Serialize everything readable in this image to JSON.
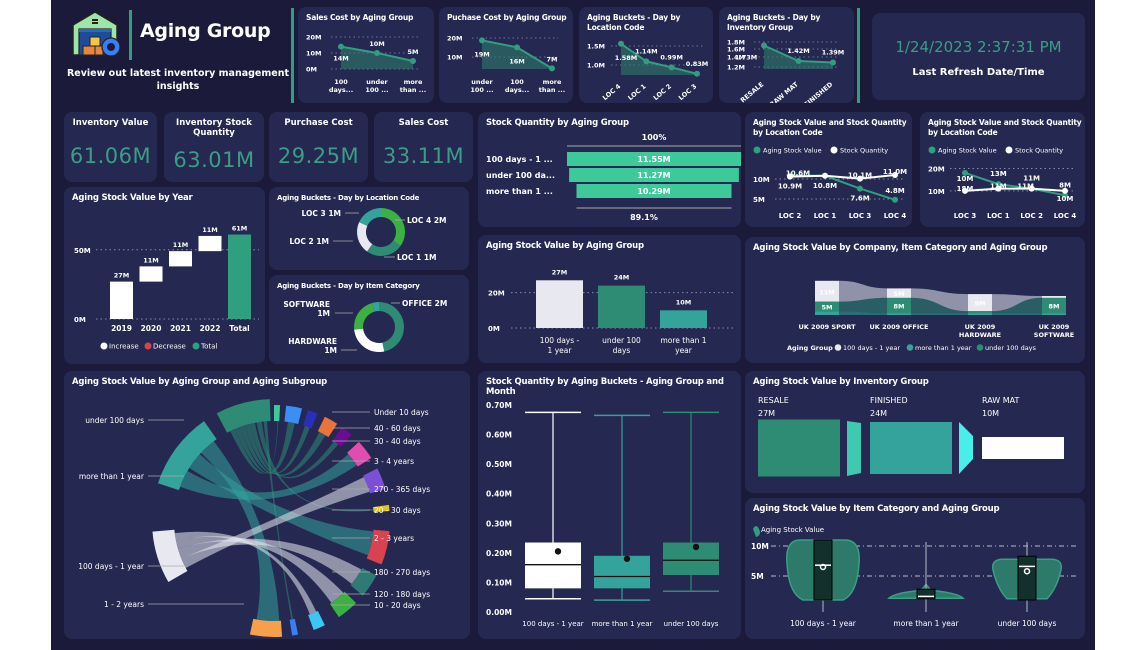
{
  "header": {
    "title": "Aging Group",
    "subtitle": "Review out latest inventory management insights",
    "logo_icon": "warehouse-gear-icon"
  },
  "refresh": {
    "datetime": "1/24/2023 2:37:31 PM",
    "label": "Last Refresh Date/Time"
  },
  "kpis": [
    {
      "label": "Inventory Value",
      "value": "61.06M"
    },
    {
      "label": "Inventory Stock Quantity",
      "value": "63.01M"
    },
    {
      "label": "Purchase Cost",
      "value": "29.25M"
    },
    {
      "label": "Sales Cost",
      "value": "33.11M"
    }
  ],
  "colors": {
    "background": "#1b1a3a",
    "card": "#252850",
    "accent": "#2f9f7f",
    "teal": "#33a39c",
    "mint": "#3ec99a",
    "white": "#ffffff",
    "decrease": "#d9434f"
  },
  "chart_data": [
    {
      "id": "sales_cost",
      "type": "area",
      "title": "Sales Cost by Aging Group",
      "categories": [
        "100 days...",
        "under 100 ...",
        "more than ..."
      ],
      "values": [
        14,
        10,
        5
      ],
      "data_labels": [
        "14M",
        "10M",
        "5M"
      ],
      "yticks": [
        "20M",
        "10M",
        "0M"
      ],
      "ylim": [
        0,
        20
      ]
    },
    {
      "id": "purchase_cost",
      "type": "area",
      "title": "Puchase Cost by Aging Group",
      "categories": [
        "under 100 ...",
        "100 days...",
        "more than ..."
      ],
      "values": [
        19,
        16,
        7
      ],
      "data_labels": [
        "19M",
        "16M",
        "7M"
      ],
      "yticks": [
        "20M",
        "10M"
      ],
      "ylim": [
        5,
        20
      ]
    },
    {
      "id": "buckets_location",
      "type": "area",
      "title": "Aging Buckets - Day by Location Code",
      "categories": [
        "LOC 4",
        "LOC 1",
        "LOC 2",
        "LOC 3"
      ],
      "values": [
        1.58,
        1.14,
        0.99,
        0.83
      ],
      "data_labels": [
        "1.58M",
        "1.14M",
        "0.99M",
        "0.83M"
      ],
      "yticks": [
        "1.5M",
        "1.0M"
      ],
      "ylim": [
        0.75,
        1.75
      ]
    },
    {
      "id": "buckets_inventory",
      "type": "area",
      "title": "Aging Buckets - Day by Inventory Group",
      "categories": [
        "RESALE",
        "RAW MAT",
        "FINISHED"
      ],
      "values": [
        1.73,
        1.42,
        1.39
      ],
      "data_labels": [
        "1.73M",
        "1.42M",
        "1.39M"
      ],
      "yticks": [
        "1.8M",
        "1.6M",
        "1.4M",
        "1.2M"
      ],
      "ylim": [
        1.2,
        1.8
      ]
    },
    {
      "id": "funnel",
      "type": "bar",
      "title": "Stock Quantity by Aging Group",
      "categories": [
        "100 days - 1 ...",
        "under 100 da...",
        "more than 1 ..."
      ],
      "values": [
        11.55,
        11.27,
        10.29
      ],
      "data_labels": [
        "11.55M",
        "11.27M",
        "10.29M"
      ],
      "top_percent": "100%",
      "bottom_percent": "89.1%"
    },
    {
      "id": "loc_combo_1",
      "type": "line",
      "title": "Aging Stock Value and Stock Quantity by Location Code",
      "legend": [
        "Aging Stock Value",
        "Stock Quantity"
      ],
      "categories": [
        "LOC 2",
        "LOC 1",
        "LOC 3",
        "LOC 4"
      ],
      "series": [
        {
          "name": "Aging Stock Value",
          "values": [
            10.9,
            10.8,
            7.6,
            4.8
          ],
          "labels": [
            "10.9M",
            "10.8M",
            "7.6M",
            "4.8M"
          ]
        },
        {
          "name": "Stock Quantity",
          "values": [
            10.6,
            10.8,
            10.1,
            11.0
          ],
          "labels": [
            "10.6M",
            "",
            "10.1M",
            "11.0M"
          ]
        }
      ],
      "yticks": [
        "10M",
        "5M"
      ],
      "ylim": [
        3,
        13
      ]
    },
    {
      "id": "loc_combo_2",
      "type": "line",
      "title": "Aging Stock Value and Stock Quantity by Location Code",
      "legend": [
        "Aging Stock Value",
        "Stock Quantity"
      ],
      "categories": [
        "LOC 3",
        "LOC 1",
        "LOC 2",
        "LOC 4"
      ],
      "series": [
        {
          "name": "Aging Stock Value",
          "values": [
            18,
            13,
            11,
            8
          ],
          "labels": [
            "18M",
            "13M",
            "11M",
            "8M"
          ]
        },
        {
          "name": "Stock Quantity",
          "values": [
            10,
            11,
            11,
            10
          ],
          "labels": [
            "10M",
            "11M",
            "11M",
            "10M"
          ]
        }
      ],
      "yticks": [
        "20M",
        "10M"
      ],
      "ylim": [
        5,
        22
      ]
    },
    {
      "id": "waterfall",
      "type": "bar",
      "title": "Aging Stock Value by Year",
      "categories": [
        "2019",
        "2020",
        "2021",
        "2022",
        "Total"
      ],
      "values": [
        27,
        11,
        11,
        11,
        61
      ],
      "data_labels": [
        "27M",
        "11M",
        "11M",
        "11M",
        "61M"
      ],
      "yticks": [
        "50M",
        "0M"
      ],
      "ylim": [
        0,
        65
      ],
      "legend": [
        "Increase",
        "Decrease",
        "Total"
      ]
    },
    {
      "id": "donut_location",
      "type": "pie",
      "title": "Aging Buckets - Day by Location Code",
      "slices": [
        {
          "label": "LOC 4 2M",
          "value": 1.58,
          "color": "#3cb043"
        },
        {
          "label": "LOC 1 1M",
          "value": 1.14,
          "color": "#2e8b74"
        },
        {
          "label": "LOC 2 1M",
          "value": 0.99,
          "color": "#e8e9f0"
        },
        {
          "label": "LOC 3 1M",
          "value": 0.83,
          "color": "#33a39c"
        }
      ]
    },
    {
      "id": "donut_category",
      "type": "pie",
      "title": "Aging Buckets - Day by Item Category",
      "slices": [
        {
          "label": "OFFICE 2M",
          "value": 2.1,
          "color": "#2e8b74"
        },
        {
          "label": "HARDWARE 1M",
          "value": 1.2,
          "color": "#ffffff"
        },
        {
          "label": "SOFTWARE 1M",
          "value": 1.0,
          "color": "#3cb043"
        },
        {
          "label": "",
          "value": 0.2,
          "color": "#33a39c"
        }
      ]
    },
    {
      "id": "aging_group_bar",
      "type": "bar",
      "title": "Aging Stock Value by Aging Group",
      "categories": [
        "100 days - 1 year",
        "under 100 days",
        "more than 1 year"
      ],
      "values": [
        27,
        24,
        10
      ],
      "data_labels": [
        "27M",
        "24M",
        "10M"
      ],
      "colors": [
        "#e8e9f0",
        "#2e8b74",
        "#33a39c"
      ],
      "yticks": [
        "20M",
        "0M"
      ],
      "ylim": [
        0,
        30
      ]
    },
    {
      "id": "ribbon",
      "type": "bar",
      "title": "Aging Stock Value by Company, Item Category and Aging Group",
      "categories": [
        "UK 2009 SPORT",
        "UK 2009 OFFICE",
        "UK 2009 HARDWARE",
        "UK 2009 SOFTWARE"
      ],
      "series": [
        {
          "name": "100 days - 1 year",
          "values": [
            11,
            5,
            9,
            1
          ],
          "labels": [
            "11M",
            "5M",
            "9M",
            ""
          ]
        },
        {
          "name": "under 100 days",
          "values": [
            5,
            8,
            1,
            8
          ],
          "labels": [
            "5M",
            "8M",
            "",
            "8M"
          ]
        },
        {
          "name": "more than 1 year",
          "values": [
            2,
            1,
            1,
            1
          ],
          "labels": [
            "",
            "",
            "",
            ""
          ]
        }
      ],
      "legend_title": "Aging Group",
      "legend": [
        "100 days - 1 year",
        "more than 1 year",
        "under 100 days"
      ]
    },
    {
      "id": "chord",
      "type": "other",
      "title": "Aging Stock Value by Aging Group and Aging Subgroup",
      "groups": [
        "under 100 days",
        "more than 1 year",
        "100 days - 1 year"
      ],
      "subgroups": [
        {
          "label": "Under 10 days",
          "color": "#3ec99a"
        },
        {
          "label": "",
          "color": "#3a8ef6"
        },
        {
          "label": "",
          "color": "#2a2fb8"
        },
        {
          "label": "40 - 60 days",
          "color": "#e8743b"
        },
        {
          "label": "30 - 40 days",
          "color": "#6a0d91"
        },
        {
          "label": "3 - 4 years",
          "color": "#e04cb0"
        },
        {
          "label": "270 - 365 days",
          "color": "#7b4fd6"
        },
        {
          "label": "20 - 30 days",
          "color": "#e8c21a"
        },
        {
          "label": "2 - 3 years",
          "color": "#d9434f"
        },
        {
          "label": "180 - 270 days",
          "color": "#2e7a74"
        },
        {
          "label": "120 - 180 days",
          "color": "#3cb043"
        },
        {
          "label": "",
          "color": "#3ac8f2"
        },
        {
          "label": "10 - 20 days",
          "color": "#3a7ef6"
        },
        {
          "label": "1 - 2 years",
          "color": "#f7a04b"
        }
      ]
    },
    {
      "id": "boxplot",
      "type": "scatter",
      "title": "Stock Quantity by Aging Buckets - Aging Group and Month",
      "categories": [
        "100 days - 1 year",
        "more than 1 year",
        "under 100 days"
      ],
      "boxes": [
        {
          "min": 0.045,
          "q1": 0.08,
          "median": 0.16,
          "q3": 0.235,
          "max": 0.675,
          "mean": 0.205,
          "color": "#ffffff"
        },
        {
          "min": 0.04,
          "q1": 0.08,
          "median": 0.12,
          "q3": 0.19,
          "max": 0.665,
          "mean": 0.18,
          "color": "#33a39c"
        },
        {
          "min": 0.07,
          "q1": 0.125,
          "median": 0.175,
          "q3": 0.235,
          "max": 0.675,
          "mean": 0.22,
          "color": "#2e8b74"
        }
      ],
      "yticks": [
        "0.70M",
        "0.60M",
        "0.50M",
        "0.40M",
        "0.30M",
        "0.20M",
        "0.10M",
        "0.00M"
      ],
      "ylim": [
        0,
        0.7
      ]
    },
    {
      "id": "inventory_flow",
      "type": "bar",
      "title": "Aging Stock Value by Inventory Group",
      "categories": [
        "RESALE",
        "FINISHED",
        "RAW MAT"
      ],
      "values": [
        27,
        24,
        10
      ],
      "data_labels": [
        "27M",
        "24M",
        "10M"
      ],
      "colors": [
        "#2e8b74",
        "#33a39c",
        "#ffffff"
      ],
      "connector_colors": [
        "#3ec9b0",
        "#4aeee8"
      ]
    },
    {
      "id": "violin",
      "type": "other",
      "title": "Aging Stock Value by Item Category and Aging Group",
      "legend": [
        "Aging Stock Value"
      ],
      "categories": [
        "100 days - 1 year",
        "more than 1 year",
        "under 100 days"
      ],
      "yticks": [
        "10M",
        "5M"
      ],
      "ylim": [
        0,
        12
      ]
    }
  ]
}
